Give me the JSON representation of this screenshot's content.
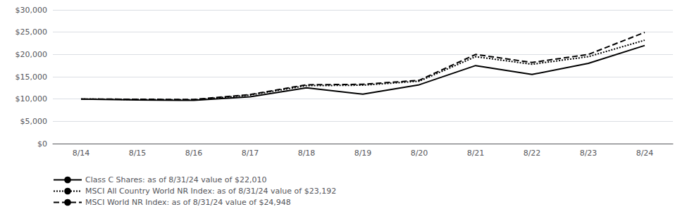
{
  "chart_data": {
    "type": "line",
    "categories": [
      "8/14",
      "8/15",
      "8/16",
      "8/17",
      "8/18",
      "8/19",
      "8/20",
      "8/21",
      "8/22",
      "8/23",
      "8/24"
    ],
    "series": [
      {
        "name": "Class C Shares: as of 8/31/24 value of $22,010",
        "color": "#000000",
        "line_style": "solid",
        "values": [
          10000,
          9800,
          9700,
          10500,
          12500,
          11100,
          13200,
          17500,
          15500,
          18000,
          22010
        ]
      },
      {
        "name": "MSCI All Country World NR Index: as of 8/31/24 value of $23,192",
        "color": "#000000",
        "line_style": "dotted",
        "values": [
          10000,
          9900,
          9800,
          10900,
          13000,
          13100,
          14000,
          19500,
          17800,
          19500,
          23192
        ]
      },
      {
        "name": "MSCI World NR Index: as of 8/31/24 value of $24,948",
        "color": "#000000",
        "line_style": "dashed",
        "values": [
          10000,
          9950,
          9900,
          11000,
          13200,
          13300,
          14200,
          20000,
          18200,
          20000,
          24948
        ]
      }
    ],
    "ylim": [
      0,
      30000
    ],
    "yticks": [
      {
        "value": 0,
        "label": "$0"
      },
      {
        "value": 5000,
        "label": "$5,000"
      },
      {
        "value": 10000,
        "label": "$10,000"
      },
      {
        "value": 15000,
        "label": "$15,000"
      },
      {
        "value": 20000,
        "label": "$20,000"
      },
      {
        "value": 25000,
        "label": "$25,000"
      },
      {
        "value": 30000,
        "label": "$30,000"
      }
    ],
    "grid": true,
    "legend": "bottom left"
  }
}
